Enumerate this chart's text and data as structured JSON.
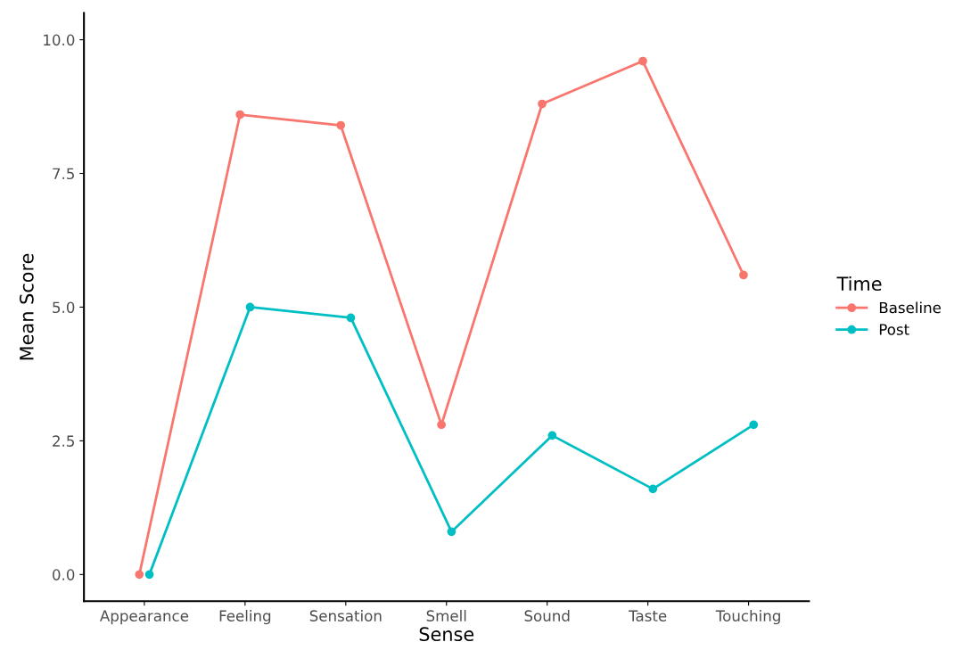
{
  "chart_data": {
    "type": "line",
    "xlabel": "Sense",
    "ylabel": "Mean Score",
    "legend_title": "Time",
    "categories": [
      "Appearance",
      "Feeling",
      "Sensation",
      "Smell",
      "Sound",
      "Taste",
      "Touching"
    ],
    "series": [
      {
        "name": "Baseline",
        "color": "#f8766d",
        "values": [
          0,
          8.6,
          8.4,
          2.8,
          8.8,
          9.6,
          5.6
        ]
      },
      {
        "name": "Post",
        "color": "#00bfc4",
        "values": [
          0,
          5.0,
          4.8,
          0.8,
          2.6,
          1.6,
          2.8
        ]
      }
    ],
    "ylim": [
      -0.5,
      10.5
    ],
    "yticks": [
      {
        "value": 0,
        "label": "0.0"
      },
      {
        "value": 2.5,
        "label": "2.5"
      },
      {
        "value": 5,
        "label": "5.0"
      },
      {
        "value": 7.5,
        "label": "7.5"
      },
      {
        "value": 10,
        "label": "10.0"
      }
    ],
    "grid": false,
    "legend": "right",
    "marker": "circle",
    "line_style": "solid"
  }
}
